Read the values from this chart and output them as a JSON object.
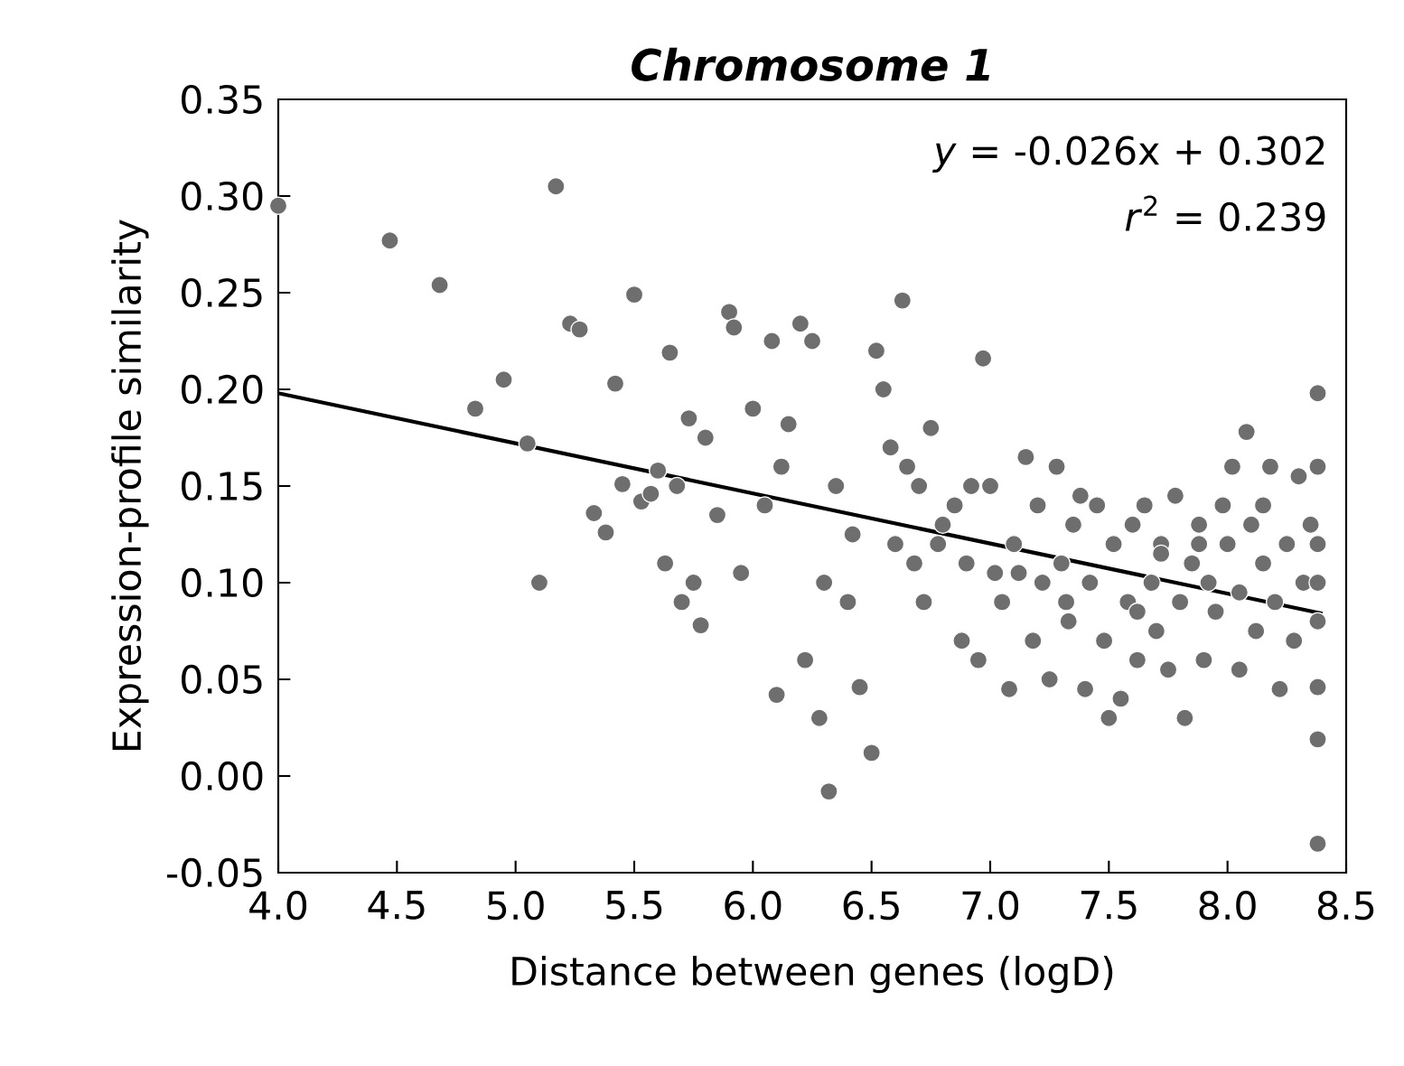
{
  "chart_data": {
    "type": "scatter",
    "title": "Chromosome 1",
    "xlabel": "Distance between genes (logD)",
    "ylabel": "Expression-profile similarity",
    "annotations": [
      "*y* = -0.026x + 0.302",
      "*r*$^{2}$ = 0.239"
    ],
    "xlim": [
      4.0,
      8.5
    ],
    "ylim": [
      -0.05,
      0.35
    ],
    "xticks": [
      {
        "value": 4.0,
        "label": "4.0"
      },
      {
        "value": 4.5,
        "label": "4.5"
      },
      {
        "value": 5.0,
        "label": "5.0"
      },
      {
        "value": 5.5,
        "label": "5.5"
      },
      {
        "value": 6.0,
        "label": "6.0"
      },
      {
        "value": 6.5,
        "label": "6.5"
      },
      {
        "value": 7.0,
        "label": "7.0"
      },
      {
        "value": 7.5,
        "label": "7.5"
      },
      {
        "value": 8.0,
        "label": "8.0"
      },
      {
        "value": 8.5,
        "label": "8.5"
      }
    ],
    "yticks": [
      {
        "value": -0.05,
        "label": "-0.05"
      },
      {
        "value": 0.0,
        "label": "0.00"
      },
      {
        "value": 0.05,
        "label": "0.05"
      },
      {
        "value": 0.1,
        "label": "0.10"
      },
      {
        "value": 0.15,
        "label": "0.15"
      },
      {
        "value": 0.2,
        "label": "0.20"
      },
      {
        "value": 0.25,
        "label": "0.25"
      },
      {
        "value": 0.3,
        "label": "0.30"
      },
      {
        "value": 0.35,
        "label": "0.35"
      }
    ],
    "grid": false,
    "marker": "circle",
    "series": [
      {
        "type": "scatter",
        "color": "#6e6e6e",
        "x": [
          4.0,
          4.47,
          4.68,
          4.83,
          4.95,
          5.05,
          5.1,
          5.17,
          5.23,
          5.27,
          5.33,
          5.38,
          5.42,
          5.45,
          5.5,
          5.53,
          5.57,
          5.6,
          5.63,
          5.65,
          5.68,
          5.7,
          5.73,
          5.75,
          5.78,
          5.8,
          5.85,
          5.9,
          5.92,
          5.95,
          6.0,
          6.05,
          6.08,
          6.1,
          6.15,
          6.2,
          6.22,
          6.25,
          6.28,
          6.3,
          6.32,
          6.35,
          6.4,
          6.45,
          6.5,
          6.52,
          6.55,
          6.6,
          6.63,
          6.65,
          6.7,
          6.72,
          6.75,
          6.8,
          6.85,
          6.88,
          6.9,
          6.95,
          6.97,
          7.0,
          7.05,
          7.08,
          7.1,
          7.15,
          7.18,
          7.2,
          7.22,
          7.25,
          7.28,
          7.3,
          7.33,
          7.35,
          7.4,
          7.42,
          7.45,
          7.48,
          7.5,
          7.52,
          7.55,
          7.58,
          7.6,
          7.62,
          7.65,
          7.68,
          7.7,
          7.72,
          7.75,
          7.78,
          7.8,
          7.82,
          7.85,
          7.88,
          7.9,
          7.92,
          7.95,
          7.98,
          8.0,
          8.02,
          8.05,
          8.08,
          8.1,
          8.12,
          8.15,
          8.18,
          8.2,
          8.22,
          8.25,
          8.28,
          8.3,
          8.32,
          8.35,
          8.38,
          8.38,
          8.38,
          8.38,
          8.38,
          8.38,
          8.38,
          8.38,
          6.12,
          6.42,
          6.58,
          6.78,
          6.92,
          7.12,
          7.38,
          7.62,
          7.88,
          8.15,
          6.68,
          7.02,
          7.32,
          7.72,
          8.05
        ],
        "values": [
          0.295,
          0.277,
          0.254,
          0.19,
          0.205,
          0.172,
          0.1,
          0.305,
          0.234,
          0.231,
          0.136,
          0.126,
          0.203,
          0.151,
          0.249,
          0.142,
          0.146,
          0.158,
          0.11,
          0.219,
          0.15,
          0.09,
          0.185,
          0.1,
          0.078,
          0.175,
          0.135,
          0.24,
          0.232,
          0.105,
          0.19,
          0.14,
          0.225,
          0.042,
          0.182,
          0.234,
          0.06,
          0.225,
          0.03,
          0.1,
          -0.008,
          0.15,
          0.09,
          0.046,
          0.012,
          0.22,
          0.2,
          0.12,
          0.246,
          0.16,
          0.15,
          0.09,
          0.18,
          0.13,
          0.14,
          0.07,
          0.11,
          0.06,
          0.216,
          0.15,
          0.09,
          0.045,
          0.12,
          0.165,
          0.07,
          0.14,
          0.1,
          0.05,
          0.16,
          0.11,
          0.08,
          0.13,
          0.045,
          0.1,
          0.14,
          0.07,
          0.03,
          0.12,
          0.04,
          0.09,
          0.13,
          0.06,
          0.14,
          0.1,
          0.075,
          0.12,
          0.055,
          0.145,
          0.09,
          0.03,
          0.11,
          0.13,
          0.06,
          0.1,
          0.085,
          0.14,
          0.12,
          0.16,
          0.095,
          0.178,
          0.13,
          0.075,
          0.11,
          0.16,
          0.09,
          0.045,
          0.12,
          0.07,
          0.155,
          0.1,
          0.13,
          0.198,
          0.16,
          0.12,
          0.1,
          0.08,
          0.046,
          0.019,
          -0.035,
          0.16,
          0.125,
          0.17,
          0.12,
          0.15,
          0.105,
          0.145,
          0.085,
          0.12,
          0.14,
          0.11,
          0.105,
          0.09,
          0.115,
          0.055
        ]
      },
      {
        "type": "line",
        "color": "#000000",
        "marker": "none",
        "x": [
          4.0,
          8.4
        ],
        "values": [
          0.198,
          0.084
        ]
      }
    ]
  }
}
